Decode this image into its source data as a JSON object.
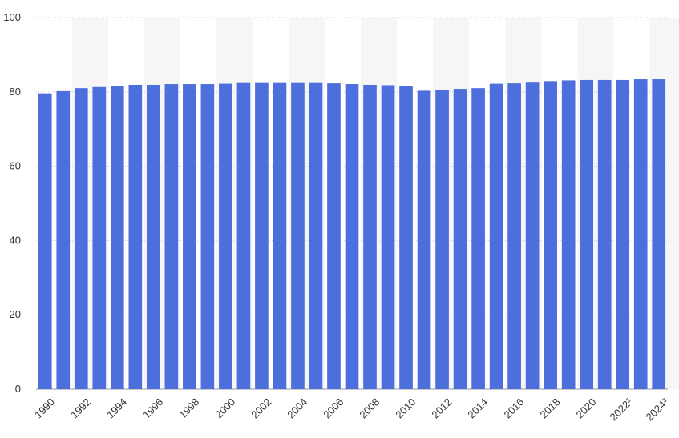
{
  "chart_data": {
    "type": "bar",
    "title": "",
    "xlabel": "",
    "ylabel": "",
    "ylim": [
      0,
      100
    ],
    "y_ticks": [
      0,
      20,
      40,
      60,
      80,
      100
    ],
    "grid": true,
    "categories": [
      "1990",
      "1991",
      "1992",
      "1993",
      "1994",
      "1995",
      "1996",
      "1997",
      "1998",
      "1999",
      "2000",
      "2001",
      "2002",
      "2003",
      "2004",
      "2005",
      "2006",
      "2007",
      "2008",
      "2009",
      "2010",
      "2011",
      "2012",
      "2013",
      "2014",
      "2015",
      "2016",
      "2017",
      "2018",
      "2019",
      "2020",
      "2021",
      "2022²",
      "2023",
      "2024³"
    ],
    "x_tick_labels": [
      "1990",
      "",
      "1992",
      "",
      "1994",
      "",
      "1996",
      "",
      "1998",
      "",
      "2000",
      "",
      "2002",
      "",
      "2004",
      "",
      "2006",
      "",
      "2008",
      "",
      "2010",
      "",
      "2012",
      "",
      "2014",
      "",
      "2016",
      "",
      "2018",
      "",
      "2020",
      "",
      "2022²",
      "",
      "2024³"
    ],
    "values": [
      79.6,
      80.2,
      81.0,
      81.3,
      81.6,
      81.9,
      81.9,
      82.1,
      82.1,
      82.1,
      82.2,
      82.4,
      82.4,
      82.4,
      82.4,
      82.4,
      82.3,
      82.1,
      81.9,
      81.8,
      81.6,
      80.3,
      80.5,
      80.8,
      81.0,
      82.2,
      82.3,
      82.5,
      82.9,
      83.1,
      83.2,
      83.2,
      83.2,
      83.4,
      83.4
    ],
    "colors": {
      "bar": "#4c6fdb",
      "band": "#f6f6f7",
      "grid": "#cccccc",
      "text": "#333333"
    }
  }
}
